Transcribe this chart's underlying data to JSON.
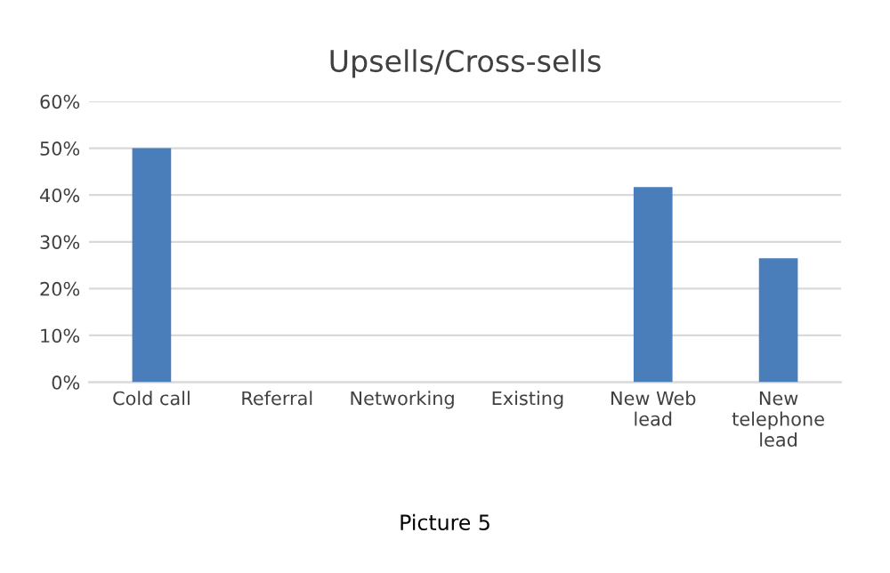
{
  "chart_data": {
    "type": "bar",
    "title": "Upsells/Cross-sells",
    "categories": [
      "Cold call",
      "Referral",
      "Networking",
      "Existing",
      "New Web\nlead",
      "New\ntelephone\nlead"
    ],
    "values": [
      50,
      0,
      0,
      0,
      41.7,
      26.5
    ],
    "color": "#4a7ebb",
    "ylim": [
      0,
      60
    ],
    "yticks": [
      {
        "value": 0,
        "label": "0%"
      },
      {
        "value": 10,
        "label": "10%"
      },
      {
        "value": 20,
        "label": "20%"
      },
      {
        "value": 30,
        "label": "30%"
      },
      {
        "value": 40,
        "label": "40%"
      },
      {
        "value": 50,
        "label": "50%"
      },
      {
        "value": 60,
        "label": "60%"
      }
    ],
    "grid": "y",
    "annotations": [
      "Picture 5"
    ]
  }
}
